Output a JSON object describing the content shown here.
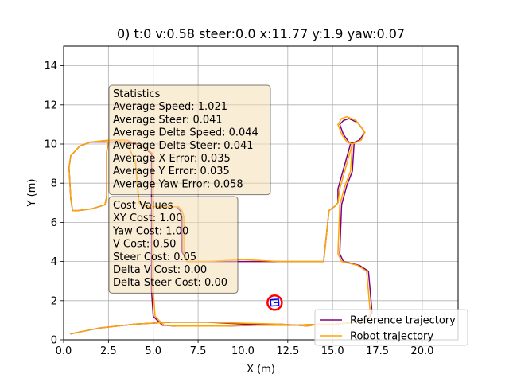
{
  "chart_data": {
    "type": "line",
    "title": "0) t:0 v:0.58 steer:0.0 x:11.77 y:1.9 yaw:0.07",
    "xlabel": "X (m)",
    "ylabel": "Y (m)",
    "xlim": [
      0,
      22
    ],
    "ylim": [
      0,
      15
    ],
    "grid": true,
    "x_ticks": [
      0.0,
      2.5,
      5.0,
      7.5,
      10.0,
      12.5,
      15.0,
      17.5,
      20.0
    ],
    "x_tick_labels": [
      "0.0",
      "2.5",
      "5.0",
      "7.5",
      "10.0",
      "12.5",
      "15.0",
      "17.5",
      "20.0"
    ],
    "y_ticks": [
      0,
      2,
      4,
      6,
      8,
      10,
      12,
      14
    ],
    "y_tick_labels": [
      "0",
      "2",
      "4",
      "6",
      "8",
      "10",
      "12",
      "14"
    ],
    "legend_position": "bottom-right",
    "series": [
      {
        "name": "Reference trajectory",
        "color": "#800080",
        "x": [
          0.4,
          0.9,
          2.0,
          4.0,
          6.0,
          8.0,
          10.0,
          12.0,
          13.0,
          13.6,
          14.2,
          15.2,
          16.4,
          17.0,
          17.2,
          17.0,
          16.5,
          15.6,
          15.4,
          15.5,
          15.8,
          16.1,
          16.2,
          15.9,
          15.6,
          15.4,
          15.6,
          15.9,
          16.4,
          16.8,
          16.5,
          16.0,
          15.6,
          15.3,
          15.3,
          15.1,
          14.8,
          14.5,
          12.0,
          10.0,
          8.0,
          6.9,
          6.6,
          6.6,
          6.5,
          6.3,
          5.5,
          4.6,
          4.2,
          4.0,
          3.6,
          3.3,
          2.9,
          2.5,
          2.4,
          2.4,
          2.3,
          1.6,
          0.8,
          0.5,
          0.4,
          0.3,
          0.4,
          0.9,
          1.5,
          2.5,
          3.5,
          4.4,
          4.9,
          4.9,
          4.9,
          5.0,
          5.5,
          6.2,
          6.6,
          7.5,
          9.0,
          11.0,
          13.0,
          14.5
        ],
        "y": [
          0.3,
          0.4,
          0.6,
          0.8,
          0.9,
          0.9,
          0.8,
          0.8,
          0.75,
          0.7,
          0.8,
          0.8,
          0.9,
          1.1,
          1.4,
          3.5,
          3.8,
          4.0,
          4.4,
          6.9,
          7.9,
          8.6,
          10.0,
          10.1,
          10.5,
          11.0,
          11.2,
          11.3,
          11.1,
          10.6,
          10.2,
          10.0,
          8.7,
          7.7,
          7.0,
          6.8,
          6.6,
          4.0,
          4.0,
          4.0,
          4.0,
          4.0,
          4.5,
          6.3,
          6.6,
          6.8,
          6.8,
          6.8,
          7.0,
          9.1,
          9.9,
          10.1,
          10.1,
          10.1,
          9.6,
          7.3,
          6.9,
          6.7,
          6.6,
          6.6,
          7.2,
          8.8,
          9.4,
          9.9,
          10.1,
          10.1,
          10.1,
          9.9,
          9.5,
          7.0,
          2.5,
          1.2,
          0.75,
          0.7,
          0.7,
          0.7,
          0.7,
          0.75,
          0.75,
          0.8
        ]
      },
      {
        "name": "Robot trajectory",
        "color": "#FFA500",
        "x": [
          0.4,
          0.9,
          2.0,
          4.0,
          6.0,
          8.0,
          10.0,
          12.0,
          13.0,
          13.6,
          14.2,
          15.2,
          16.4,
          17.0,
          17.1,
          16.9,
          16.4,
          15.5,
          15.3,
          15.4,
          15.7,
          16.0,
          16.1,
          15.8,
          15.5,
          15.3,
          15.5,
          15.8,
          16.3,
          16.8,
          16.6,
          16.1,
          15.7,
          15.4,
          15.3,
          15.1,
          14.8,
          14.5,
          12.0,
          10.0,
          8.0,
          6.9,
          6.7,
          6.7,
          6.6,
          6.4,
          5.5,
          4.6,
          4.2,
          4.0,
          3.6,
          3.3,
          2.9,
          2.5,
          2.4,
          2.4,
          2.3,
          1.6,
          0.8,
          0.5,
          0.4,
          0.3,
          0.4,
          0.9,
          1.5,
          2.5,
          3.5,
          4.4,
          5.0,
          5.0,
          5.0,
          5.1,
          5.6,
          6.3,
          6.7,
          7.5,
          9.0,
          11.0,
          13.0,
          14.5
        ],
        "y": [
          0.3,
          0.4,
          0.6,
          0.8,
          0.9,
          0.9,
          0.85,
          0.8,
          0.75,
          0.7,
          0.8,
          0.8,
          0.9,
          1.1,
          1.4,
          3.5,
          3.8,
          4.0,
          4.4,
          6.9,
          7.9,
          8.6,
          10.0,
          10.1,
          10.5,
          11.0,
          11.3,
          11.4,
          11.2,
          10.6,
          10.2,
          10.0,
          8.7,
          7.7,
          7.0,
          6.8,
          6.6,
          4.0,
          4.0,
          4.1,
          4.0,
          4.0,
          4.5,
          6.3,
          6.6,
          6.8,
          6.8,
          6.8,
          7.0,
          9.1,
          9.9,
          10.1,
          10.2,
          10.2,
          9.6,
          7.3,
          6.9,
          6.7,
          6.6,
          6.6,
          7.2,
          8.8,
          9.4,
          9.9,
          10.1,
          10.2,
          10.2,
          9.9,
          9.5,
          7.0,
          2.5,
          1.2,
          0.75,
          0.7,
          0.7,
          0.7,
          0.7,
          0.75,
          0.75,
          0.8
        ]
      }
    ],
    "robot_marker": {
      "x": 11.77,
      "y": 1.9,
      "yaw": 0.07,
      "color": "#0000FF",
      "circle_color": "#FF0000"
    },
    "annotations": {
      "statistics": {
        "lines": [
          "Statistics",
          "Average Speed: 1.021",
          "Average Steer: 0.041",
          "Average Delta Speed: 0.044",
          "Average Delta Steer: 0.041",
          "Average X Error: 0.035",
          "Average Y Error: 0.035",
          "Average Yaw Error: 0.058"
        ]
      },
      "cost_values": {
        "lines": [
          "Cost Values",
          "XY Cost: 1.00",
          "Yaw Cost: 1.00",
          "V Cost: 0.50",
          "Steer Cost: 0.05",
          "Delta V Cost: 0.00",
          "Delta Steer Cost: 0.00"
        ]
      }
    }
  }
}
